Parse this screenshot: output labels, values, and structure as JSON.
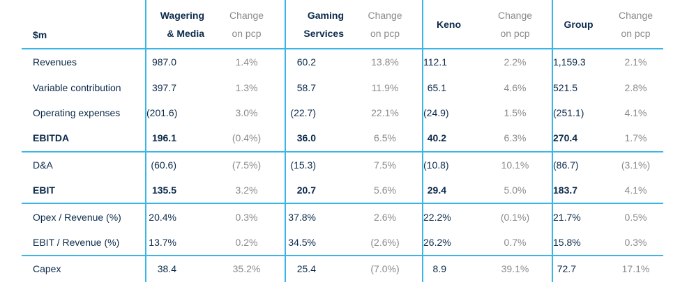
{
  "header": {
    "label": "$m",
    "segments": [
      {
        "name_line1": "Wagering",
        "name_line2": "& Media"
      },
      {
        "name_line1": "Gaming",
        "name_line2": "Services"
      },
      {
        "name_line1": "Keno",
        "name_line2": ""
      },
      {
        "name_line1": "Group",
        "name_line2": ""
      }
    ],
    "change_line1": "Change",
    "change_line2": "on pcp"
  },
  "rows": [
    {
      "label": "Revenues",
      "bold": false,
      "values": [
        "987.0",
        "1.4%",
        "60.2",
        "13.8%",
        "112.1",
        "2.2%",
        "1,159.3",
        "2.1%"
      ]
    },
    {
      "label": "Variable contribution",
      "bold": false,
      "values": [
        "397.7",
        "1.3%",
        "58.7",
        "11.9%",
        "65.1",
        "4.6%",
        "521.5",
        "2.8%"
      ]
    },
    {
      "label": "Operating expenses",
      "bold": false,
      "values": [
        "(201.6)",
        "3.0%",
        "(22.7)",
        "22.1%",
        "(24.9)",
        "1.5%",
        "(251.1)",
        "4.1%"
      ]
    },
    {
      "label": "EBITDA",
      "bold": true,
      "values": [
        "196.1",
        "(0.4%)",
        "36.0",
        "6.5%",
        "40.2",
        "6.3%",
        "270.4",
        "1.7%"
      ]
    },
    {
      "label": "D&A",
      "bold": false,
      "values": [
        "(60.6)",
        "(7.5%)",
        "(15.3)",
        "7.5%",
        "(10.8)",
        "10.1%",
        "(86.7)",
        "(3.1%)"
      ]
    },
    {
      "label": "EBIT",
      "bold": true,
      "values": [
        "135.5",
        "3.2%",
        "20.7",
        "5.6%",
        "29.4",
        "5.0%",
        "183.7",
        "4.1%"
      ]
    },
    {
      "label": "Opex / Revenue (%)",
      "bold": false,
      "values": [
        "20.4%",
        "0.3%",
        "37.8%",
        "2.6%",
        "22.2%",
        "(0.1%)",
        "21.7%",
        "0.5%"
      ]
    },
    {
      "label": "EBIT / Revenue (%)",
      "bold": false,
      "values": [
        "13.7%",
        "0.2%",
        "34.5%",
        "(2.6%)",
        "26.2%",
        "0.7%",
        "15.8%",
        "0.3%"
      ]
    },
    {
      "label": "Capex",
      "bold": false,
      "values": [
        "38.4",
        "35.2%",
        "25.4",
        "(7.0%)",
        "8.9",
        "39.1%",
        "72.7",
        "17.1%"
      ]
    }
  ],
  "accent_color": "#39b6e6",
  "text_color": "#0b2a4a",
  "muted_color": "#8a8a8a"
}
